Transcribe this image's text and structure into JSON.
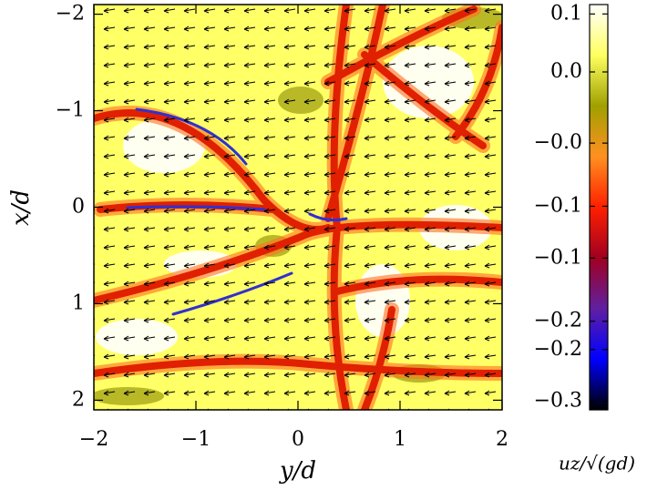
{
  "chart_data": {
    "type": "contour",
    "xlabel": "y/d",
    "ylabel": "x/d",
    "xlim": [
      -2,
      2
    ],
    "xticks": [
      {
        "value": -2,
        "label": "−2"
      },
      {
        "value": -1,
        "label": "−1"
      },
      0,
      1,
      2
    ],
    "ylim": [
      2.1,
      -2.1
    ],
    "yticks": [
      {
        "value": -2,
        "label": "−2"
      },
      {
        "value": -1,
        "label": "−1"
      },
      0,
      1,
      2
    ],
    "colorbar": {
      "label": "uz/√(gd)",
      "lim": [
        0.12,
        -0.31
      ],
      "ticks": [
        {
          "value": 0.11,
          "label": "0.1"
        },
        {
          "value": 0.0485,
          "label": "0.0"
        },
        {
          "value": -0.027,
          "label": "−0.0"
        },
        {
          "value": -0.094,
          "label": "−0.1"
        },
        {
          "value": -0.149,
          "label": "−0.1"
        },
        {
          "value": -0.216,
          "label": "−0.2"
        },
        {
          "value": -0.246,
          "label": "−0.2"
        },
        {
          "value": -0.301,
          "label": "−0.3"
        }
      ],
      "colors": [
        "#ffffff",
        "#ffff60",
        "#a0a000",
        "#ff9020",
        "#ff2000",
        "#a00020",
        "#6020a0",
        "#0000ff",
        "#000000"
      ]
    }
  }
}
